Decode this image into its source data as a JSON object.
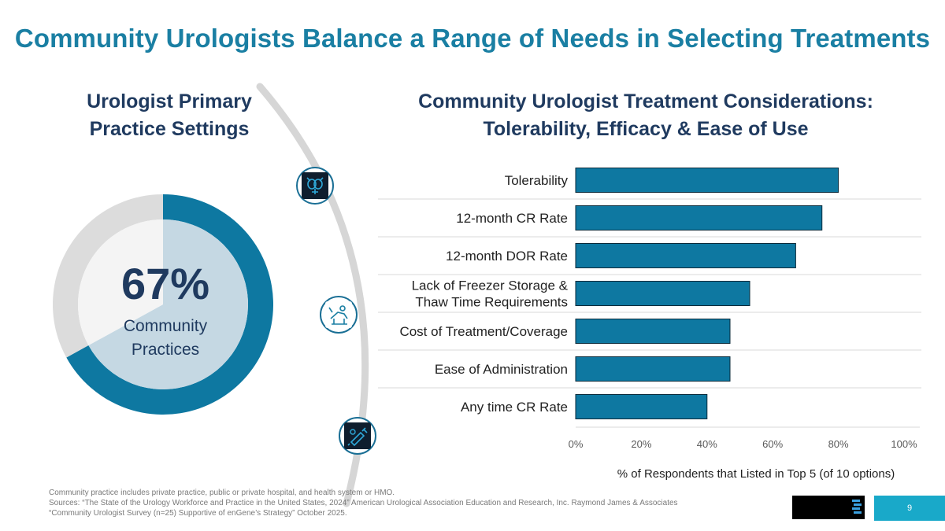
{
  "title": "Community Urologists Balance a Range of Needs in Selecting Treatments",
  "left_panel": {
    "heading_line1": "Urologist Primary",
    "heading_line2": "Practice Settings",
    "donut": {
      "value_label": "67%",
      "label_line1": "Community",
      "label_line2": "Practices",
      "share": 0.67,
      "colors": {
        "primary": "#0e78a1",
        "remainder": "#dcdcdc",
        "inner_primary": "#c5d8e3",
        "inner_remainder": "#f4f4f4"
      }
    }
  },
  "icons": [
    {
      "name": "organs-icon"
    },
    {
      "name": "clinic-chair-icon"
    },
    {
      "name": "syringe-icon"
    }
  ],
  "chart_data": {
    "type": "bar",
    "orientation": "horizontal",
    "title_line1": "Community Urologist Treatment Considerations:",
    "title_line2": "Tolerability, Efficacy & Ease of Use",
    "categories": [
      [
        "Tolerability"
      ],
      [
        "12-month CR Rate"
      ],
      [
        "12-month DOR Rate"
      ],
      [
        "Lack of Freezer Storage &",
        "Thaw Time Requirements"
      ],
      [
        "Cost of Treatment/Coverage"
      ],
      [
        "Ease of Administration"
      ],
      [
        "Any time CR Rate"
      ]
    ],
    "values": [
      80,
      75,
      67,
      53,
      47,
      47,
      40
    ],
    "xlim": [
      0,
      100
    ],
    "ticks": [
      0,
      20,
      40,
      60,
      80,
      100
    ],
    "tick_labels": [
      "0%",
      "20%",
      "40%",
      "60%",
      "80%",
      "100%"
    ],
    "xlabel": "% of Respondents that Listed in Top 5 (of 10 options)",
    "bar_color": "#0e78a1",
    "grid": true
  },
  "footnote": {
    "line1": "Community practice includes private practice, public or private hospital, and health system or HMO.",
    "line2": "Sources: “The State of the Urology Workforce and Practice in the United States, 2024” American Urological Association Education and Research, Inc. Raymond James & Associates",
    "line3": "“Community Urologist Survey (n=25) Supportive of enGene’s Strategy” October 2025."
  },
  "page_number": "9"
}
